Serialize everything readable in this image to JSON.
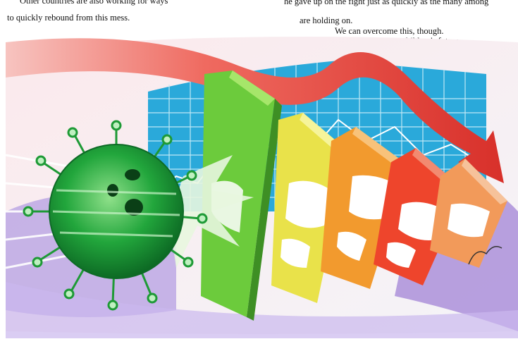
{
  "caption": {
    "left_line_1": "Other countries are also working for ways",
    "left_line_2": "to quickly rebound from this mess.",
    "right_line_1": "he gave up on the fight just as quickly as the many among",
    "right_line_2": "are holding on.",
    "right_line_3": "We can overcome this, though.",
    "right_line_4": "For our children's future."
  },
  "illustration": {
    "subject": "virus knocking over falling domino bars with world maps, red downward arrow over grid chart",
    "signature": "artist signature"
  },
  "colors": {
    "virus": "#1fa83a",
    "arrow": "#e8463f",
    "grid": "#29a8d8",
    "bar_green": "#6cc63a",
    "bar_yellow": "#e8e34a",
    "bar_orange": "#f29a2e",
    "bar_dark_orange": "#ef6a2a",
    "bar_red": "#e8402c",
    "bar_peach": "#f0a06a"
  }
}
